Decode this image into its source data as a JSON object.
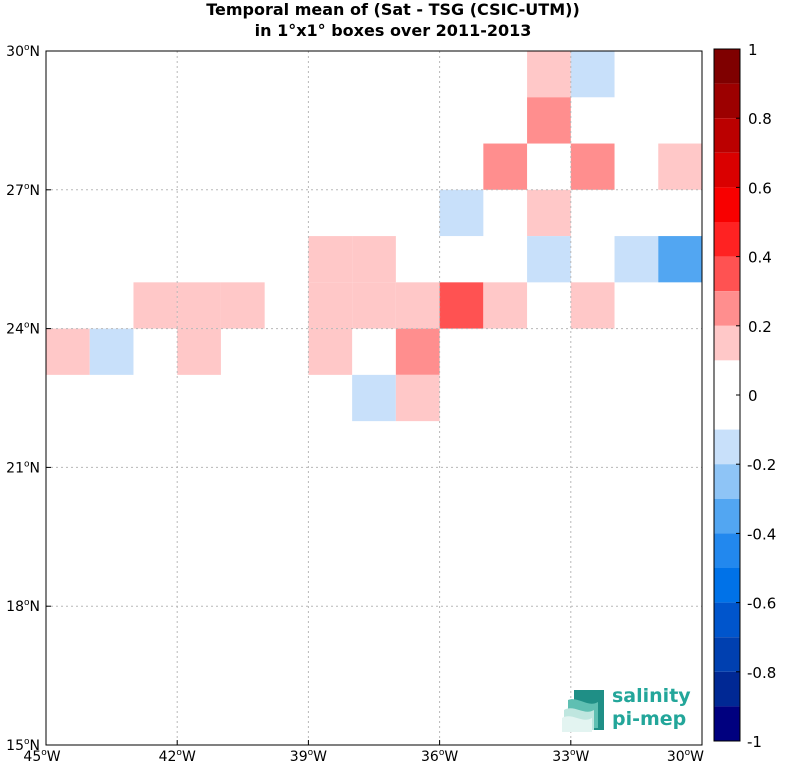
{
  "title": {
    "line1": "Temporal mean of (Sat - TSG (CSIC-UTM))",
    "line2": "in 1°x1° boxes over 2011-2013"
  },
  "map": {
    "lon_range": [
      -45,
      -30
    ],
    "lat_range": [
      15,
      30
    ],
    "grid": true,
    "x_ticks": [
      {
        "value": -45,
        "label": "45",
        "suffix": "W"
      },
      {
        "value": -42,
        "label": "42",
        "suffix": "W"
      },
      {
        "value": -39,
        "label": "39",
        "suffix": "W"
      },
      {
        "value": -36,
        "label": "36",
        "suffix": "W"
      },
      {
        "value": -33,
        "label": "33",
        "suffix": "W"
      },
      {
        "value": -30,
        "label": "30",
        "suffix": "W"
      }
    ],
    "y_ticks": [
      {
        "value": 30,
        "label": "30",
        "suffix": "N"
      },
      {
        "value": 27,
        "label": "27",
        "suffix": "N"
      },
      {
        "value": 24,
        "label": "24",
        "suffix": "N"
      },
      {
        "value": 21,
        "label": "21",
        "suffix": "N"
      },
      {
        "value": 18,
        "label": "18",
        "suffix": "N"
      },
      {
        "value": 15,
        "label": "15",
        "suffix": "N"
      }
    ],
    "degree_symbol": "o"
  },
  "chart_data": {
    "type": "heatmap",
    "title": "Temporal mean of (Sat - TSG (CSIC-UTM)) in 1°x1° boxes over 2011-2013",
    "xlim": [
      -45,
      -30
    ],
    "ylim": [
      15,
      30
    ],
    "cells": [
      {
        "lon": -34,
        "lat": 29,
        "value": 0.15
      },
      {
        "lon": -33,
        "lat": 29,
        "value": -0.15
      },
      {
        "lon": -34,
        "lat": 28,
        "value": 0.25
      },
      {
        "lon": -35,
        "lat": 27,
        "value": 0.25
      },
      {
        "lon": -33,
        "lat": 27,
        "value": 0.25
      },
      {
        "lon": -31,
        "lat": 27,
        "value": 0.15
      },
      {
        "lon": -36,
        "lat": 26,
        "value": -0.15
      },
      {
        "lon": -34,
        "lat": 26,
        "value": 0.15
      },
      {
        "lon": -39,
        "lat": 25,
        "value": 0.15
      },
      {
        "lon": -38,
        "lat": 25,
        "value": 0.15
      },
      {
        "lon": -34,
        "lat": 25,
        "value": -0.15
      },
      {
        "lon": -32,
        "lat": 25,
        "value": -0.15
      },
      {
        "lon": -31,
        "lat": 25,
        "value": -0.35
      },
      {
        "lon": -43,
        "lat": 24,
        "value": 0.15
      },
      {
        "lon": -42,
        "lat": 24,
        "value": 0.15
      },
      {
        "lon": -41,
        "lat": 24,
        "value": 0.15
      },
      {
        "lon": -39,
        "lat": 24,
        "value": 0.15
      },
      {
        "lon": -38,
        "lat": 24,
        "value": 0.15
      },
      {
        "lon": -37,
        "lat": 24,
        "value": 0.15
      },
      {
        "lon": -36,
        "lat": 24,
        "value": 0.35
      },
      {
        "lon": -35,
        "lat": 24,
        "value": 0.15
      },
      {
        "lon": -33,
        "lat": 24,
        "value": 0.15
      },
      {
        "lon": -45,
        "lat": 23,
        "value": 0.15
      },
      {
        "lon": -44,
        "lat": 23,
        "value": -0.15
      },
      {
        "lon": -42,
        "lat": 23,
        "value": 0.15
      },
      {
        "lon": -39,
        "lat": 23,
        "value": 0.15
      },
      {
        "lon": -37,
        "lat": 23,
        "value": 0.25
      },
      {
        "lon": -38,
        "lat": 22,
        "value": -0.15
      },
      {
        "lon": -37,
        "lat": 22,
        "value": 0.15
      }
    ]
  },
  "colorbar": {
    "range": [
      -1,
      1
    ],
    "labels": [
      "1",
      "0.8",
      "0.6",
      "0.4",
      "0.2",
      "0",
      "-0.2",
      "-0.4",
      "-0.6",
      "-0.8",
      "-1"
    ],
    "label_values": [
      1,
      0.8,
      0.6,
      0.4,
      0.2,
      0,
      -0.2,
      -0.4,
      -0.6,
      -0.8,
      -1
    ],
    "bins": [
      {
        "from": 0.9,
        "to": 1.0,
        "color": "#7f0000"
      },
      {
        "from": 0.8,
        "to": 0.9,
        "color": "#9c0000"
      },
      {
        "from": 0.7,
        "to": 0.8,
        "color": "#bb0000"
      },
      {
        "from": 0.6,
        "to": 0.7,
        "color": "#da0000"
      },
      {
        "from": 0.5,
        "to": 0.6,
        "color": "#f80000"
      },
      {
        "from": 0.4,
        "to": 0.5,
        "color": "#ff2222"
      },
      {
        "from": 0.3,
        "to": 0.4,
        "color": "#ff5252"
      },
      {
        "from": 0.2,
        "to": 0.3,
        "color": "#ff8e8e"
      },
      {
        "from": 0.1,
        "to": 0.2,
        "color": "#ffc8c8"
      },
      {
        "from": -0.1,
        "to": 0.1,
        "color": "#ffffff"
      },
      {
        "from": -0.2,
        "to": -0.1,
        "color": "#c8e0fa"
      },
      {
        "from": -0.3,
        "to": -0.2,
        "color": "#8ec4f6"
      },
      {
        "from": -0.4,
        "to": -0.3,
        "color": "#52a6f2"
      },
      {
        "from": -0.5,
        "to": -0.4,
        "color": "#2288ee"
      },
      {
        "from": -0.6,
        "to": -0.5,
        "color": "#0072e8"
      },
      {
        "from": -0.7,
        "to": -0.6,
        "color": "#0055cc"
      },
      {
        "from": -0.8,
        "to": -0.7,
        "color": "#0040b0"
      },
      {
        "from": -0.9,
        "to": -0.8,
        "color": "#002894"
      },
      {
        "from": -1.0,
        "to": -0.9,
        "color": "#00007f"
      }
    ]
  },
  "logo": {
    "line1": "salinity",
    "line2": "pi-mep",
    "colors": {
      "text": "#23a69a",
      "icon_dark": "#1f8f86",
      "icon_light": "#bfe6df"
    }
  }
}
